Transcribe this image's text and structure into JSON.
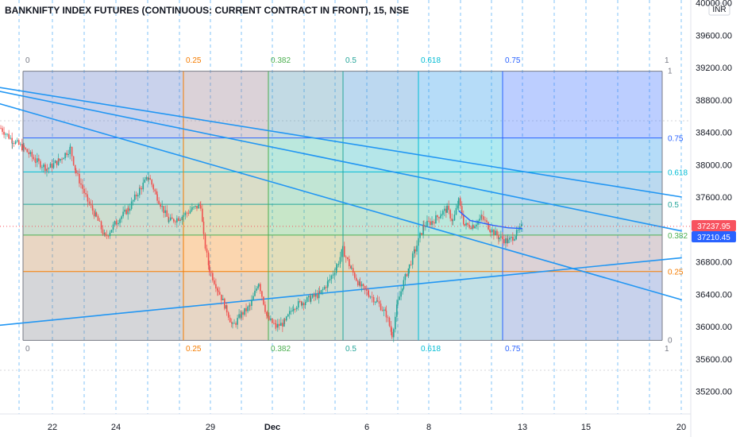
{
  "chart_data": {
    "type": "candlestick",
    "title": "BANKNIFTY INDEX FUTURES (CONTINUOUS: CURRENT CONTRACT IN FRONT), 15, NSE",
    "y_unit": "INR",
    "ylim": [
      35200,
      40000
    ],
    "y_ticks": [
      "40000.00",
      "39600.00",
      "39200.00",
      "38800.00",
      "38400.00",
      "38000.00",
      "37600.00",
      "37200.00",
      "36800.00",
      "36400.00",
      "36000.00",
      "35600.00",
      "35200.00"
    ],
    "x_ticks": [
      {
        "label": "22",
        "bold": false
      },
      {
        "label": "24",
        "bold": false
      },
      {
        "label": "29",
        "bold": false
      },
      {
        "label": "Dec",
        "bold": true
      },
      {
        "label": "6",
        "bold": false
      },
      {
        "label": "8",
        "bold": false
      },
      {
        "label": "13",
        "bold": false
      },
      {
        "label": "15",
        "bold": false
      },
      {
        "label": "20",
        "bold": false
      }
    ],
    "price_labels": [
      {
        "value": "37237.95",
        "price": 37237.95,
        "color": "#f7525f"
      },
      {
        "value": "37210.45",
        "price": 37210.45,
        "color": "#2962ff"
      }
    ],
    "fib_price_levels": [
      {
        "label": "1",
        "price": 39155
      },
      {
        "label": "0.75",
        "price": 38330
      },
      {
        "label": "0.618",
        "price": 37910
      },
      {
        "label": "0.5",
        "price": 37510
      },
      {
        "label": "0.382",
        "price": 37130
      },
      {
        "label": "0.25",
        "price": 36680
      },
      {
        "label": "0",
        "price": 35830
      }
    ],
    "fib_time_levels": [
      "0",
      "0.25",
      "0.382",
      "0.5",
      "0.618",
      "0.75",
      "1"
    ],
    "fib_colors": {
      "0": "#787b86",
      "0.25": "#f57c00",
      "0.382": "#4caf50",
      "0.5": "#26a69a",
      "0.618": "#00bcd4",
      "0.75": "#2962ff",
      "1": "#787b86"
    },
    "candle_colors": {
      "up": "#26a69a",
      "down": "#ef5350"
    },
    "trendline_color": "#2196f3",
    "close_path": [
      {
        "x": 0,
        "y": 38450
      },
      {
        "x": 4,
        "y": 38300
      },
      {
        "x": 8,
        "y": 38200
      },
      {
        "x": 12,
        "y": 38050
      },
      {
        "x": 16,
        "y": 37950
      },
      {
        "x": 20,
        "y": 38050
      },
      {
        "x": 24,
        "y": 38200
      },
      {
        "x": 26,
        "y": 37900
      },
      {
        "x": 30,
        "y": 37550
      },
      {
        "x": 33,
        "y": 37350
      },
      {
        "x": 36,
        "y": 37100
      },
      {
        "x": 40,
        "y": 37300
      },
      {
        "x": 44,
        "y": 37450
      },
      {
        "x": 48,
        "y": 37700
      },
      {
        "x": 51,
        "y": 37850
      },
      {
        "x": 54,
        "y": 37600
      },
      {
        "x": 58,
        "y": 37300
      },
      {
        "x": 62,
        "y": 37350
      },
      {
        "x": 66,
        "y": 37450
      },
      {
        "x": 69,
        "y": 37500
      },
      {
        "x": 70,
        "y": 37100
      },
      {
        "x": 72,
        "y": 36700
      },
      {
        "x": 75,
        "y": 36450
      },
      {
        "x": 78,
        "y": 36200
      },
      {
        "x": 80,
        "y": 36000
      },
      {
        "x": 83,
        "y": 36150
      },
      {
        "x": 86,
        "y": 36250
      },
      {
        "x": 89,
        "y": 36550
      },
      {
        "x": 92,
        "y": 36100
      },
      {
        "x": 95,
        "y": 36000
      },
      {
        "x": 98,
        "y": 36050
      },
      {
        "x": 101,
        "y": 36250
      },
      {
        "x": 104,
        "y": 36300
      },
      {
        "x": 107,
        "y": 36350
      },
      {
        "x": 110,
        "y": 36400
      },
      {
        "x": 113,
        "y": 36550
      },
      {
        "x": 116,
        "y": 36750
      },
      {
        "x": 118,
        "y": 36950
      },
      {
        "x": 121,
        "y": 36700
      },
      {
        "x": 124,
        "y": 36500
      },
      {
        "x": 127,
        "y": 36400
      },
      {
        "x": 130,
        "y": 36300
      },
      {
        "x": 133,
        "y": 36150
      },
      {
        "x": 135,
        "y": 35900
      },
      {
        "x": 137,
        "y": 36300
      },
      {
        "x": 139,
        "y": 36550
      },
      {
        "x": 141,
        "y": 36750
      },
      {
        "x": 143,
        "y": 36950
      },
      {
        "x": 146,
        "y": 37250
      },
      {
        "x": 149,
        "y": 37300
      },
      {
        "x": 152,
        "y": 37400
      },
      {
        "x": 154,
        "y": 37450
      },
      {
        "x": 156,
        "y": 37300
      },
      {
        "x": 158,
        "y": 37550
      },
      {
        "x": 160,
        "y": 37250
      },
      {
        "x": 163,
        "y": 37250
      },
      {
        "x": 166,
        "y": 37350
      },
      {
        "x": 169,
        "y": 37200
      },
      {
        "x": 172,
        "y": 37100
      },
      {
        "x": 175,
        "y": 37050
      },
      {
        "x": 178,
        "y": 37150
      },
      {
        "x": 180,
        "y": 37237.95
      }
    ],
    "ma_path": [
      {
        "x": 158,
        "y": 37430
      },
      {
        "x": 162,
        "y": 37310
      },
      {
        "x": 166,
        "y": 37280
      },
      {
        "x": 170,
        "y": 37250
      },
      {
        "x": 175,
        "y": 37220
      },
      {
        "x": 180,
        "y": 37210.45
      }
    ],
    "trendlines": [
      {
        "x1": -5,
        "y1": 38980,
        "x2": 235,
        "y2": 37600
      },
      {
        "x1": -5,
        "y1": 38940,
        "x2": 235,
        "y2": 37180
      },
      {
        "x1": -5,
        "y1": 38800,
        "x2": 235,
        "y2": 36330
      },
      {
        "x1": -5,
        "y1": 36000,
        "x2": 235,
        "y2": 36850
      }
    ]
  }
}
